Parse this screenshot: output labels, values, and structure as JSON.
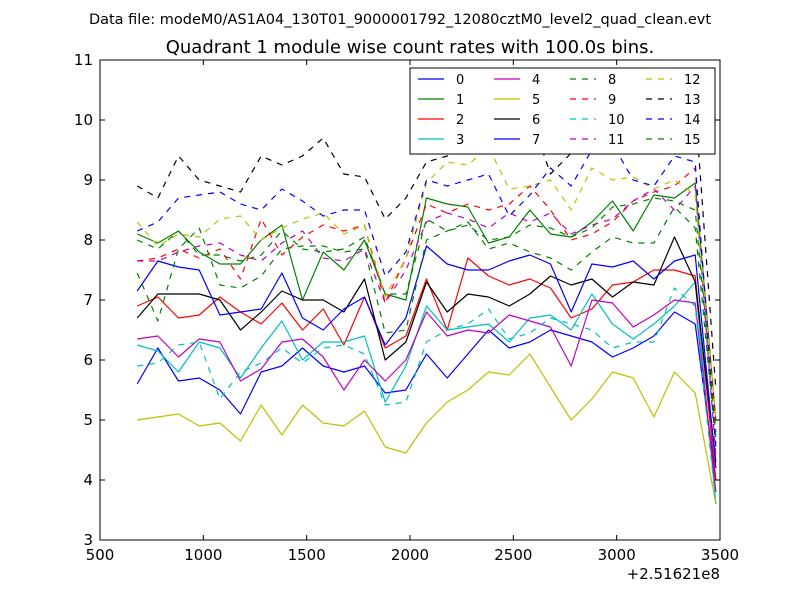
{
  "figure": {
    "suptitle": "Data file: modeM0/AS1A04_130T01_9000001792_12080cztM0_level2_quad_clean.evt"
  },
  "chart_data": {
    "type": "line",
    "title": "Quadrant 1 module wise count rates with 100.0s bins.",
    "xlabel": "",
    "ylabel": "",
    "x_offset_label": "+2.51621e8",
    "xlim": [
      500,
      3500
    ],
    "ylim": [
      3,
      11
    ],
    "xticks": [
      "500",
      "1000",
      "1500",
      "2000",
      "2500",
      "3000",
      "3500"
    ],
    "yticks": [
      "3",
      "4",
      "5",
      "6",
      "7",
      "8",
      "9",
      "10",
      "11"
    ],
    "legend_position": "top-right",
    "x": [
      680,
      780,
      880,
      980,
      1080,
      1180,
      1280,
      1380,
      1480,
      1580,
      1680,
      1780,
      1880,
      1980,
      2080,
      2180,
      2280,
      2380,
      2480,
      2580,
      2680,
      2780,
      2880,
      2980,
      3080,
      3180,
      3280,
      3380,
      3480
    ],
    "series": [
      {
        "name": "0",
        "color": "#0000ff",
        "dash": "solid",
        "values": [
          5.6,
          6.2,
          5.65,
          5.7,
          5.5,
          5.1,
          5.8,
          5.9,
          6.2,
          5.9,
          5.8,
          5.9,
          5.45,
          5.5,
          6.1,
          5.7,
          6.1,
          6.5,
          6.2,
          6.3,
          6.5,
          6.4,
          6.3,
          6.05,
          6.2,
          6.4,
          6.8,
          6.6,
          4.0
        ]
      },
      {
        "name": "1",
        "color": "#008000",
        "dash": "solid",
        "values": [
          8.1,
          7.95,
          8.15,
          7.8,
          7.6,
          7.6,
          8.0,
          8.25,
          7.0,
          7.8,
          7.5,
          8.0,
          7.1,
          7.0,
          8.7,
          8.6,
          8.55,
          7.95,
          8.05,
          8.5,
          8.1,
          8.05,
          8.3,
          8.65,
          8.15,
          8.75,
          8.7,
          8.95,
          5.0
        ]
      },
      {
        "name": "2",
        "color": "#ff0000",
        "dash": "solid",
        "values": [
          6.9,
          7.05,
          6.7,
          6.75,
          7.05,
          6.8,
          6.6,
          6.95,
          6.5,
          6.85,
          6.25,
          7.05,
          6.2,
          6.4,
          7.35,
          6.5,
          7.7,
          7.4,
          7.25,
          7.35,
          7.2,
          6.7,
          6.85,
          7.25,
          7.3,
          7.5,
          7.5,
          7.4,
          4.0
        ]
      },
      {
        "name": "3",
        "color": "#00bfbf",
        "dash": "solid",
        "values": [
          6.25,
          6.15,
          5.8,
          6.3,
          6.2,
          5.7,
          6.2,
          6.65,
          6.0,
          6.3,
          6.3,
          6.4,
          5.3,
          5.9,
          6.9,
          6.5,
          6.55,
          6.6,
          6.3,
          6.7,
          6.75,
          6.5,
          7.1,
          6.6,
          6.35,
          6.6,
          6.9,
          7.3,
          3.6
        ]
      },
      {
        "name": "4",
        "color": "#bf00bf",
        "dash": "solid",
        "values": [
          6.35,
          6.4,
          6.05,
          6.35,
          6.3,
          5.65,
          5.85,
          6.3,
          6.35,
          6.05,
          5.5,
          6.0,
          5.65,
          6.0,
          6.8,
          6.4,
          6.5,
          6.45,
          6.75,
          6.65,
          6.55,
          5.9,
          7.0,
          6.95,
          6.55,
          6.75,
          7.0,
          6.95,
          3.8
        ]
      },
      {
        "name": "5",
        "color": "#bfbf00",
        "dash": "solid",
        "values": [
          5.0,
          5.05,
          5.1,
          4.9,
          4.95,
          4.65,
          5.25,
          4.75,
          5.25,
          4.95,
          4.9,
          5.15,
          4.55,
          4.45,
          4.95,
          5.3,
          5.5,
          5.8,
          5.75,
          6.1,
          5.55,
          5.0,
          5.35,
          5.8,
          5.7,
          5.05,
          5.8,
          5.45,
          3.6
        ]
      },
      {
        "name": "6",
        "color": "#000000",
        "dash": "solid",
        "values": [
          6.7,
          7.1,
          7.1,
          7.1,
          7.0,
          6.5,
          6.8,
          7.15,
          7.0,
          7.0,
          6.8,
          7.35,
          6.0,
          6.3,
          7.3,
          6.8,
          7.1,
          7.05,
          6.9,
          7.1,
          7.4,
          7.25,
          7.35,
          7.05,
          7.3,
          7.25,
          8.05,
          7.3,
          4.3
        ]
      },
      {
        "name": "7",
        "color": "#0000ff",
        "dash": "solid",
        "values": [
          7.15,
          7.65,
          7.55,
          7.5,
          6.75,
          6.8,
          6.85,
          7.45,
          6.7,
          6.5,
          6.85,
          7.05,
          6.25,
          6.7,
          7.9,
          7.6,
          7.5,
          7.5,
          7.65,
          7.75,
          7.6,
          6.8,
          7.6,
          7.55,
          7.65,
          7.35,
          7.65,
          7.75,
          4.2
        ]
      },
      {
        "name": "8",
        "color": "#008000",
        "dash": "dashed",
        "values": [
          7.45,
          6.65,
          7.85,
          8.2,
          7.25,
          7.2,
          7.4,
          7.85,
          7.9,
          7.9,
          7.8,
          7.85,
          6.45,
          6.5,
          8.0,
          8.15,
          8.3,
          7.85,
          7.95,
          7.8,
          7.7,
          7.5,
          7.8,
          8.05,
          7.95,
          7.95,
          8.55,
          8.2,
          4.6
        ]
      },
      {
        "name": "9",
        "color": "#ff0000",
        "dash": "dashed",
        "values": [
          7.65,
          7.7,
          7.85,
          7.7,
          7.85,
          7.35,
          8.35,
          7.75,
          8.05,
          8.25,
          8.15,
          8.25,
          6.95,
          7.7,
          8.6,
          8.45,
          8.6,
          8.5,
          8.6,
          8.9,
          8.5,
          8.0,
          8.1,
          8.3,
          8.65,
          8.8,
          8.9,
          9.2,
          4.8
        ]
      },
      {
        "name": "10",
        "color": "#00bfbf",
        "dash": "dashed",
        "values": [
          5.9,
          5.95,
          6.25,
          6.3,
          5.35,
          5.8,
          5.95,
          6.2,
          5.95,
          6.2,
          6.25,
          6.1,
          5.25,
          5.3,
          6.3,
          6.5,
          6.6,
          6.85,
          6.35,
          6.45,
          6.7,
          6.6,
          6.5,
          6.2,
          6.3,
          6.3,
          7.2,
          6.9,
          3.6
        ]
      },
      {
        "name": "11",
        "color": "#bf00bf",
        "dash": "dashed",
        "values": [
          7.65,
          7.65,
          7.8,
          7.9,
          7.95,
          7.75,
          7.65,
          7.95,
          8.15,
          7.7,
          7.65,
          7.85,
          6.95,
          7.5,
          8.3,
          8.45,
          8.35,
          8.2,
          8.45,
          8.3,
          8.45,
          8.1,
          8.25,
          8.35,
          8.65,
          8.85,
          8.5,
          8.9,
          4.4
        ]
      },
      {
        "name": "12",
        "color": "#bfbf00",
        "dash": "dashed",
        "values": [
          8.3,
          7.9,
          8.1,
          8.05,
          8.35,
          8.4,
          8.0,
          8.2,
          8.35,
          8.45,
          8.1,
          8.25,
          7.05,
          7.7,
          8.95,
          9.3,
          9.25,
          9.55,
          8.85,
          8.9,
          9.0,
          8.5,
          9.2,
          9.0,
          9.05,
          8.85,
          9.0,
          8.75,
          5.0
        ]
      },
      {
        "name": "13",
        "color": "#000000",
        "dash": "dashed",
        "values": [
          8.9,
          8.7,
          9.4,
          9.0,
          8.9,
          8.8,
          9.4,
          9.25,
          9.4,
          9.7,
          9.1,
          9.05,
          8.35,
          8.7,
          9.3,
          9.4,
          9.55,
          9.9,
          10.2,
          10.1,
          9.1,
          9.45,
          9.65,
          9.9,
          9.85,
          9.75,
          9.55,
          10.25,
          5.5
        ]
      },
      {
        "name": "14",
        "color": "#0000ff",
        "dash": "dashed",
        "values": [
          8.15,
          8.3,
          8.7,
          8.75,
          8.8,
          8.6,
          8.5,
          8.85,
          8.65,
          8.4,
          8.5,
          8.5,
          7.4,
          7.8,
          9.0,
          8.9,
          9.0,
          9.1,
          8.4,
          8.75,
          9.2,
          8.9,
          9.5,
          9.6,
          9.0,
          8.9,
          9.4,
          9.3,
          4.5
        ]
      },
      {
        "name": "15",
        "color": "#008000",
        "dash": "dashed",
        "values": [
          8.0,
          7.85,
          8.15,
          7.75,
          7.75,
          7.65,
          7.75,
          8.15,
          7.85,
          7.8,
          7.85,
          8.05,
          7.1,
          7.1,
          8.35,
          8.15,
          8.25,
          8.0,
          8.05,
          8.25,
          8.2,
          8.05,
          8.2,
          8.55,
          8.6,
          8.7,
          8.65,
          8.5,
          4.7
        ]
      }
    ]
  }
}
